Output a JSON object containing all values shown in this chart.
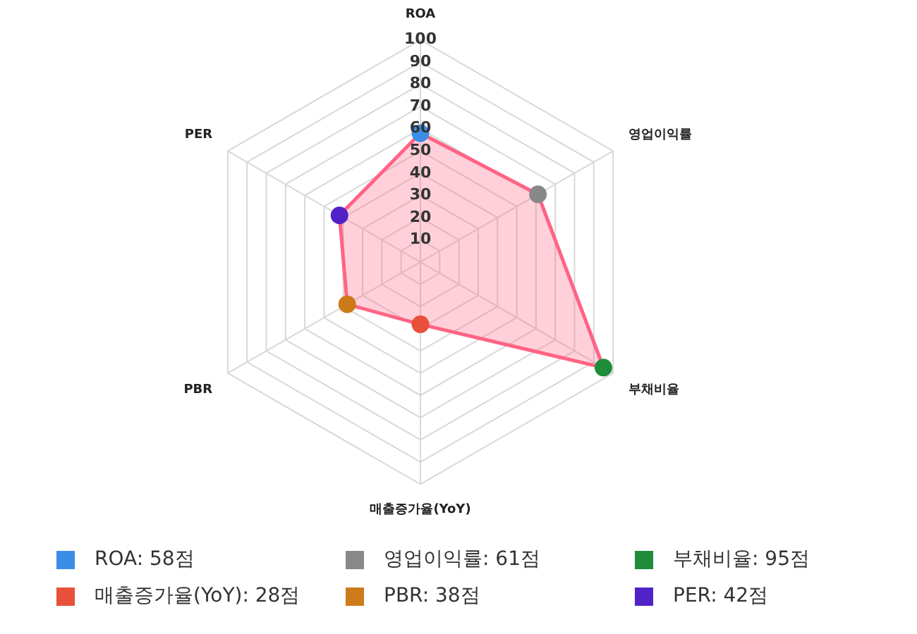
{
  "chart_data": {
    "type": "radar",
    "categories": [
      "ROA",
      "영업이익률",
      "부채비율",
      "매출증가율(YoY)",
      "PBR",
      "PER"
    ],
    "series": [
      {
        "color": "#ff6384",
        "values": [
          58,
          61,
          95,
          28,
          38,
          42
        ],
        "colors": [
          "#3b8ee8",
          "#888888",
          "#1e8c3a",
          "#e8503a",
          "#cc7a1a",
          "#5022c8"
        ]
      }
    ],
    "annotations": [
      "ROA: 58점",
      "영업이익률: 61점",
      "부채비율: 95점",
      "매출증가율(YoY): 28점",
      "PBR: 38점",
      "PER: 42점"
    ],
    "ylim": [
      0,
      100
    ],
    "yticks": [
      10,
      20,
      30,
      40,
      50,
      60,
      70,
      80,
      90,
      100
    ],
    "grid": true,
    "marker": "circle"
  }
}
